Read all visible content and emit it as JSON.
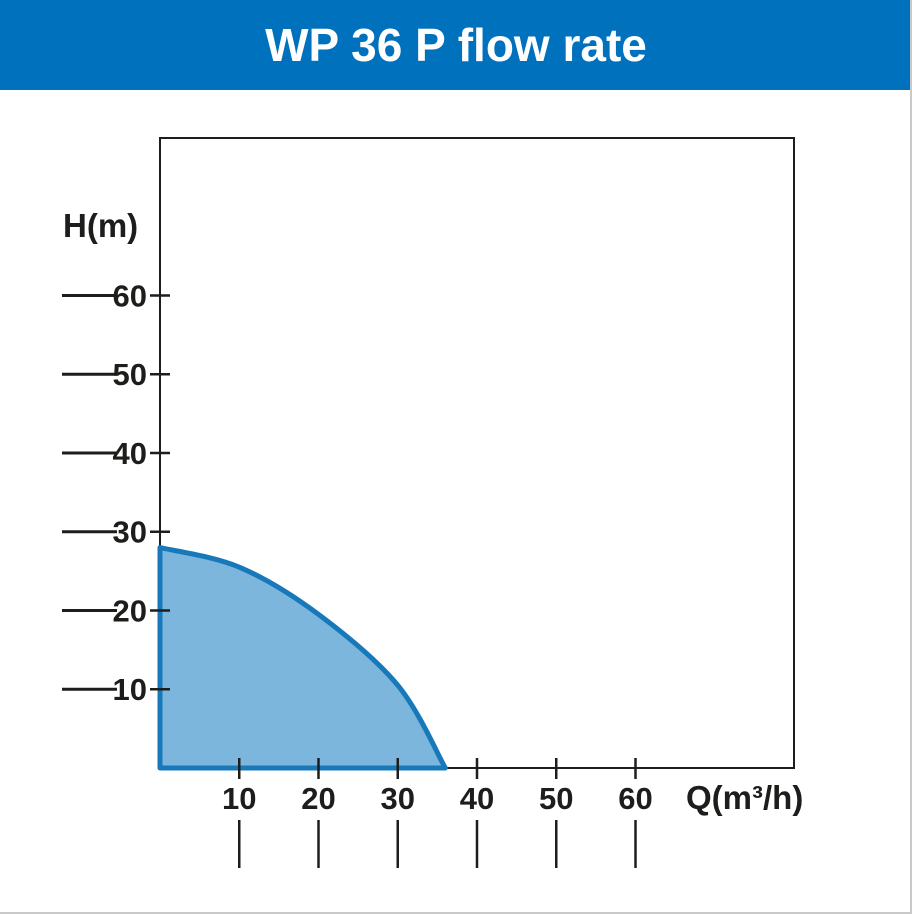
{
  "header": {
    "title": "WP 36 P flow rate"
  },
  "chart_data": {
    "type": "area",
    "title": "WP 36 P flow rate",
    "xlabel": "Q(m³/h)",
    "ylabel": "H(m)",
    "xlim": [
      0,
      80
    ],
    "ylim": [
      0,
      80
    ],
    "x_ticks": [
      10,
      20,
      30,
      40,
      50,
      60
    ],
    "y_ticks": [
      10,
      20,
      30,
      40,
      50,
      60
    ],
    "grid": false,
    "legend": false,
    "series": [
      {
        "name": "WP 36 P",
        "points": [
          [
            0,
            28
          ],
          [
            10,
            25.5
          ],
          [
            20,
            19.5
          ],
          [
            30,
            10.5
          ],
          [
            36,
            0
          ]
        ]
      }
    ],
    "colors": {
      "header_bg": "#0071bc",
      "header_text": "#ffffff",
      "area_fill": "#7db6dc",
      "area_stroke": "#1778ba",
      "axis": "#1d1d1b",
      "tick_text": "#1d1d1b"
    }
  }
}
